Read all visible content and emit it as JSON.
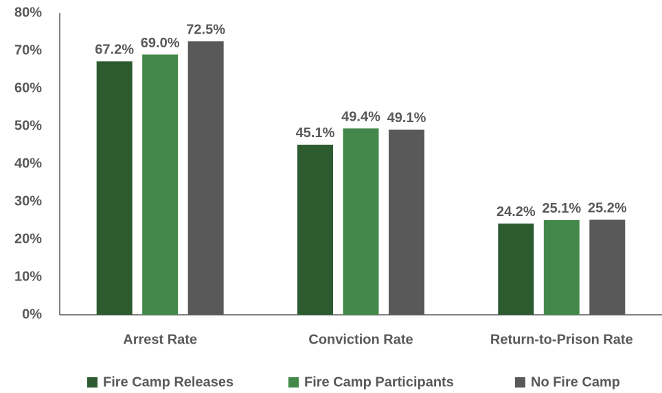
{
  "chart_data": {
    "type": "bar",
    "categories": [
      "Arrest Rate",
      "Conviction Rate",
      "Return-to-Prison Rate"
    ],
    "series": [
      {
        "name": "Fire Camp Releases",
        "color": "#2d5a2e",
        "values": [
          67.2,
          45.1,
          24.2
        ],
        "value_labels": [
          "67.2%",
          "45.1%",
          "24.2%"
        ]
      },
      {
        "name": "Fire Camp Participants",
        "color": "#43884a",
        "values": [
          69.0,
          49.4,
          25.1
        ],
        "value_labels": [
          "69.0%",
          "49.4%",
          "25.1%"
        ]
      },
      {
        "name": "No Fire Camp",
        "color": "#595959",
        "values": [
          72.5,
          49.1,
          25.2
        ],
        "value_labels": [
          "72.5%",
          "49.1%",
          "25.2%"
        ]
      }
    ],
    "ylim": [
      0,
      80
    ],
    "yticks": [
      {
        "value": 0,
        "label": "0%"
      },
      {
        "value": 10,
        "label": "10%"
      },
      {
        "value": 20,
        "label": "20%"
      },
      {
        "value": 30,
        "label": "30%"
      },
      {
        "value": 40,
        "label": "40%"
      },
      {
        "value": 50,
        "label": "50%"
      },
      {
        "value": 60,
        "label": "60%"
      },
      {
        "value": 70,
        "label": "70%"
      },
      {
        "value": 80,
        "label": "80%"
      }
    ],
    "grid": false,
    "legend": "bottom"
  }
}
